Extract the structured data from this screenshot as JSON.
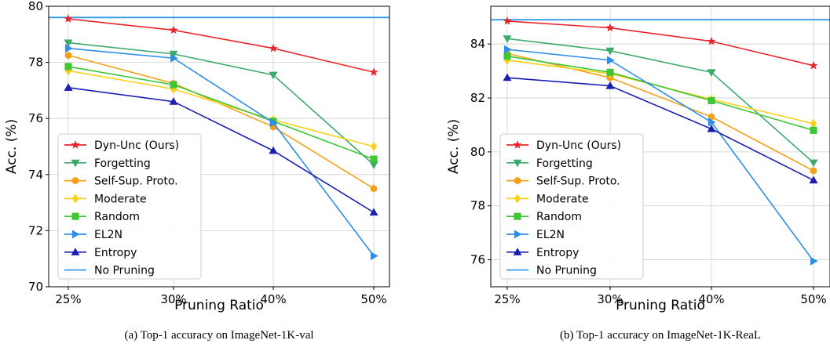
{
  "chart_data": [
    {
      "type": "line",
      "caption": "(a) Top-1 accuracy on ImageNet-1K-val",
      "xlabel": "Pruning Ratio",
      "ylabel": "Acc. (%)",
      "categories": [
        "25%",
        "30%",
        "40%",
        "50%"
      ],
      "ylim": [
        70,
        80
      ],
      "yticks": [
        "70",
        "72",
        "74",
        "76",
        "78",
        "80"
      ],
      "grid": true,
      "legend_position": "lower-left",
      "reference_line": {
        "name": "No Pruning",
        "value": 79.6,
        "color": "#3399ee"
      },
      "series": [
        {
          "name": "Dyn-Unc (Ours)",
          "values": [
            79.55,
            79.15,
            78.5,
            77.65
          ],
          "color": "#e8252a",
          "marker": "star"
        },
        {
          "name": "Forgetting",
          "values": [
            78.7,
            78.3,
            77.55,
            74.35
          ],
          "color": "#3daa6c",
          "marker": "triangle-down"
        },
        {
          "name": "Self-Sup. Proto.",
          "values": [
            78.25,
            77.25,
            75.7,
            73.5
          ],
          "color": "#f5a019",
          "marker": "hexagon"
        },
        {
          "name": "Moderate",
          "values": [
            77.7,
            77.05,
            75.95,
            75.0
          ],
          "color": "#f7d119",
          "marker": "diamond"
        },
        {
          "name": "Random",
          "values": [
            77.85,
            77.2,
            75.9,
            74.55
          ],
          "color": "#3ec634",
          "marker": "square"
        },
        {
          "name": "EL2N",
          "values": [
            78.5,
            78.15,
            75.85,
            71.1
          ],
          "color": "#2e8ee8",
          "marker": "triangle-right"
        },
        {
          "name": "Entropy",
          "values": [
            77.1,
            76.6,
            74.85,
            72.65
          ],
          "color": "#1a1fb0",
          "marker": "triangle-up"
        }
      ]
    },
    {
      "type": "line",
      "caption": "(b) Top-1 accuracy on ImageNet-1K-ReaL",
      "xlabel": "Pruning Ratio",
      "ylabel": "Acc. (%)",
      "categories": [
        "25%",
        "30%",
        "40%",
        "50%"
      ],
      "ylim": [
        75,
        85.4
      ],
      "yticks": [
        "76",
        "78",
        "80",
        "82",
        "84"
      ],
      "grid": true,
      "legend_position": "lower-left",
      "reference_line": {
        "name": "No Pruning",
        "value": 84.9,
        "color": "#3399ee"
      },
      "series": [
        {
          "name": "Dyn-Unc (Ours)",
          "values": [
            84.85,
            84.6,
            84.1,
            83.2
          ],
          "color": "#e8252a",
          "marker": "star"
        },
        {
          "name": "Forgetting",
          "values": [
            84.2,
            83.75,
            82.95,
            79.6
          ],
          "color": "#3daa6c",
          "marker": "triangle-down"
        },
        {
          "name": "Self-Sup. Proto.",
          "values": [
            83.65,
            82.75,
            81.3,
            79.3
          ],
          "color": "#f5a019",
          "marker": "hexagon"
        },
        {
          "name": "Moderate",
          "values": [
            83.4,
            82.9,
            81.95,
            81.05
          ],
          "color": "#f7d119",
          "marker": "diamond"
        },
        {
          "name": "Random",
          "values": [
            83.55,
            82.95,
            81.9,
            80.8
          ],
          "color": "#3ec634",
          "marker": "square"
        },
        {
          "name": "EL2N",
          "values": [
            83.8,
            83.4,
            81.1,
            75.95
          ],
          "color": "#2e8ee8",
          "marker": "triangle-right"
        },
        {
          "name": "Entropy",
          "values": [
            82.75,
            82.45,
            80.85,
            78.95
          ],
          "color": "#1a1fb0",
          "marker": "triangle-up"
        }
      ]
    }
  ]
}
